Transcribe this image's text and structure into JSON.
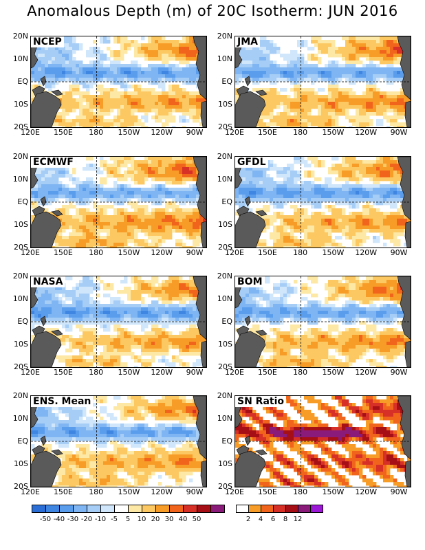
{
  "title": "Anomalous Depth (m) of 20C Isotherm: JUN 2016",
  "lat_labels": [
    "20N",
    "10N",
    "EQ",
    "10S",
    "20S"
  ],
  "lon_labels": [
    "120E",
    "150E",
    "180",
    "150W",
    "120W",
    "90W"
  ],
  "panels": [
    {
      "label": "NCEP",
      "seed": 1,
      "bias": 0
    },
    {
      "label": "JMA",
      "seed": 2,
      "bias": 2
    },
    {
      "label": "ECMWF",
      "seed": 3,
      "bias": 4
    },
    {
      "label": "GFDL",
      "seed": 4,
      "bias": 0
    },
    {
      "label": "NASA",
      "seed": 5,
      "bias": -1
    },
    {
      "label": "BOM",
      "seed": 6,
      "bias": 2
    },
    {
      "label": "ENS. Mean",
      "seed": 7,
      "bias": 1
    },
    {
      "label": "SN Ratio",
      "seed": 8,
      "bias": 0,
      "kind": "ratio"
    }
  ],
  "anomaly_scale": {
    "labels": [
      "-50",
      "-40",
      "-30",
      "-20",
      "-10",
      "-5",
      "5",
      "10",
      "20",
      "30",
      "40",
      "50"
    ],
    "colors": [
      "#2b6fd6",
      "#3f86e3",
      "#5b9ded",
      "#7fb5f2",
      "#a6cdf6",
      "#cfe6fb",
      "#ffffff",
      "#fde8a6",
      "#fcc862",
      "#f89c28",
      "#f1641c",
      "#d73027",
      "#a50f15",
      "#8b1b7a"
    ]
  },
  "ratio_scale": {
    "labels": [
      "2",
      "4",
      "6",
      "8",
      "12"
    ],
    "colors": [
      "#ffffff",
      "#f89c28",
      "#f1641c",
      "#d73027",
      "#a50f15",
      "#8b1b7a",
      "#9b18d6"
    ]
  },
  "chart_data": {
    "type": "heatmap",
    "title": "Anomalous Depth (m) of 20C Isotherm: JUN 2016",
    "panels": [
      "NCEP",
      "JMA",
      "ECMWF",
      "GFDL",
      "NASA",
      "BOM",
      "ENS. Mean",
      "SN Ratio"
    ],
    "lon_range": [
      "120E",
      "80W"
    ],
    "lat_range": [
      "20S",
      "20N"
    ],
    "units": "m",
    "contour_levels": [
      -50,
      -40,
      -30,
      -20,
      -10,
      -5,
      5,
      10,
      20,
      30,
      40,
      50
    ],
    "sn_ratio_levels": [
      2,
      4,
      6,
      8,
      12
    ],
    "pattern_summary": {
      "north_band_10N_20N_central_east": "positive 20-50",
      "equatorial_band_0_10N": "negative -20 to -40",
      "south_band_5S_15S_central_east": "positive 10-30",
      "western_pacific_10N_20N": "negative -10 to -30"
    }
  }
}
